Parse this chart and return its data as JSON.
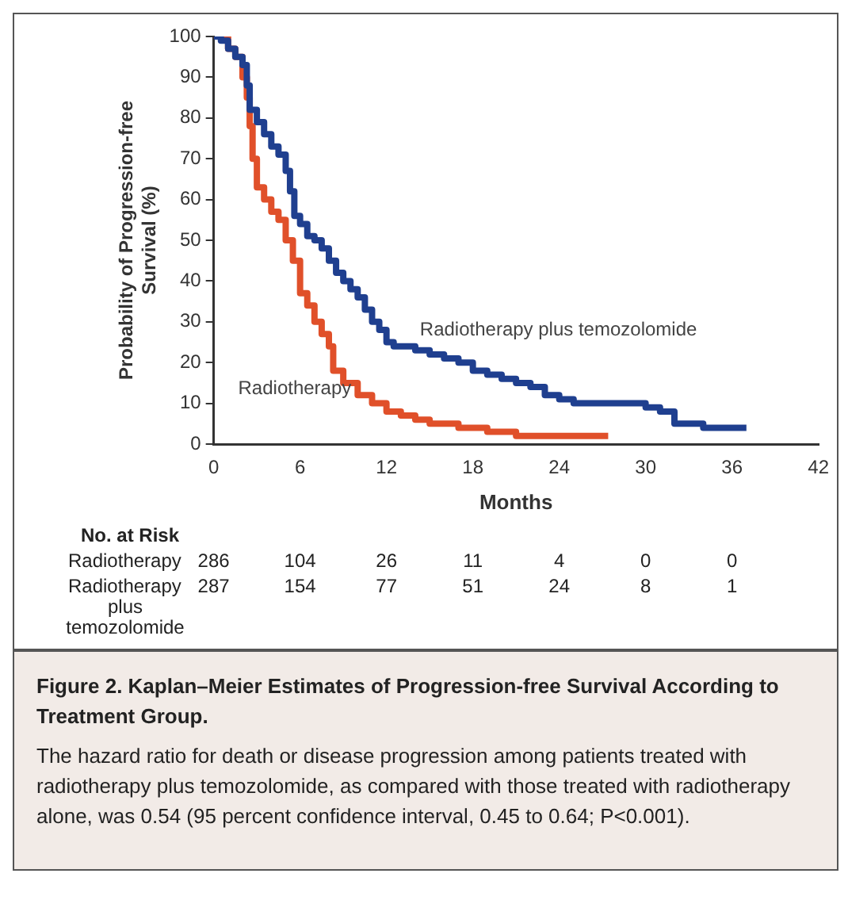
{
  "chart_data": {
    "type": "step",
    "title": "Figure 2. Kaplan–Meier Estimates of Progression-free Survival According to Treatment Group.",
    "xlabel": "Months",
    "ylabel": "Probability of Progression-free Survival (%)",
    "xlim": [
      0,
      42
    ],
    "xticks": [
      0,
      6,
      12,
      18,
      24,
      30,
      36,
      42
    ],
    "ylim": [
      0,
      100
    ],
    "yticks": [
      0,
      10,
      20,
      30,
      40,
      50,
      60,
      70,
      80,
      90,
      100
    ],
    "grid": false,
    "legend": false,
    "marker": "none",
    "line_style": "solid",
    "series": [
      {
        "name": "Radiotherapy plus temozolomide",
        "color": "#1f3f8f",
        "x": [
          0,
          0.5,
          1,
          1.5,
          2,
          2.3,
          2.5,
          3,
          3.5,
          4,
          4.5,
          5,
          5.3,
          5.6,
          6,
          6.5,
          7,
          7.5,
          8,
          8.5,
          9,
          9.5,
          10,
          10.5,
          11,
          11.5,
          12,
          12.5,
          13,
          14,
          15,
          16,
          17,
          18,
          19,
          20,
          21,
          22,
          23,
          24,
          25,
          27,
          30,
          31,
          32,
          34,
          37
        ],
        "values": [
          100,
          99,
          97,
          95,
          93,
          88,
          82,
          79,
          76,
          73,
          71,
          67,
          62,
          56,
          54,
          51,
          50,
          48,
          45,
          42,
          40,
          38,
          36,
          33,
          30,
          28,
          25,
          24,
          24,
          23,
          22,
          21,
          20,
          18,
          17,
          16,
          15,
          14,
          12,
          11,
          10,
          10,
          9,
          8,
          5,
          4,
          4
        ]
      },
      {
        "name": "Radiotherapy",
        "color": "#e0502a",
        "x": [
          0,
          1,
          1.5,
          2,
          2.3,
          2.5,
          2.7,
          3,
          3.5,
          4,
          4.5,
          5,
          5.5,
          6,
          6.5,
          7,
          7.5,
          8,
          8.3,
          9,
          10,
          11,
          12,
          13,
          14,
          15,
          16,
          17,
          18,
          19,
          20,
          21,
          22,
          27.4
        ],
        "values": [
          100,
          97,
          95,
          90,
          85,
          78,
          70,
          63,
          60,
          57,
          55,
          50,
          45,
          37,
          34,
          30,
          27,
          24,
          18,
          15,
          12,
          10,
          8,
          7,
          6,
          5,
          5,
          4,
          4,
          3,
          3,
          2,
          2,
          2
        ]
      }
    ],
    "annotations": [
      "No. at Risk",
      "Radiotherapy",
      "286",
      "104",
      "26",
      "11",
      "4",
      "0",
      "0",
      "Radiotherapy plus temozolomide",
      "287",
      "154",
      "77",
      "51",
      "24",
      "8",
      "1",
      "The hazard ratio for death or disease progression among patients treated with radiotherapy plus temozolomide, as compared with those treated with radiotherapy alone, was 0.54 (95 percent confidence interval, 0.45 to 0.64; P<0.001)."
    ]
  }
}
